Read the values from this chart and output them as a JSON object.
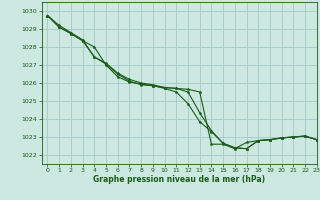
{
  "title": "Graphe pression niveau de la mer (hPa)",
  "bg_color": "#cce8e0",
  "grid_color": "#aacccc",
  "line_color": "#1a5c1a",
  "text_color": "#1a5c1a",
  "xlim": [
    -0.5,
    23
  ],
  "ylim": [
    1021.5,
    1030.5
  ],
  "yticks": [
    1022,
    1023,
    1024,
    1025,
    1026,
    1027,
    1028,
    1029,
    1030
  ],
  "xticks": [
    0,
    1,
    2,
    3,
    4,
    5,
    6,
    7,
    8,
    9,
    10,
    11,
    12,
    13,
    14,
    15,
    16,
    17,
    18,
    19,
    20,
    21,
    22,
    23
  ],
  "series": [
    [
      1029.75,
      1029.1,
      1028.75,
      1028.35,
      1028.0,
      1027.0,
      1026.35,
      1026.05,
      1025.95,
      1025.85,
      1025.75,
      1025.7,
      1025.65,
      1025.5,
      1022.6,
      1022.6,
      1022.35,
      1022.7,
      1022.8,
      1022.85,
      1022.95,
      1023.0,
      1023.05,
      1022.85
    ],
    [
      1029.75,
      1029.1,
      1028.75,
      1028.35,
      1027.45,
      1027.05,
      1026.5,
      1026.1,
      1025.9,
      1025.85,
      1025.7,
      1025.5,
      1024.85,
      1023.85,
      1023.3,
      1022.65,
      1022.4,
      1022.35,
      1022.8,
      1022.85,
      1022.95,
      1023.0,
      1023.05,
      1022.85
    ],
    [
      1029.75,
      1029.2,
      1028.8,
      1028.4,
      1027.45,
      1027.1,
      1026.55,
      1026.2,
      1026.0,
      1025.9,
      1025.75,
      1025.7,
      1025.5,
      1024.35,
      1023.35,
      1022.65,
      1022.4,
      1022.35,
      1022.8,
      1022.85,
      1022.95,
      1023.0,
      1023.05,
      1022.85
    ]
  ]
}
